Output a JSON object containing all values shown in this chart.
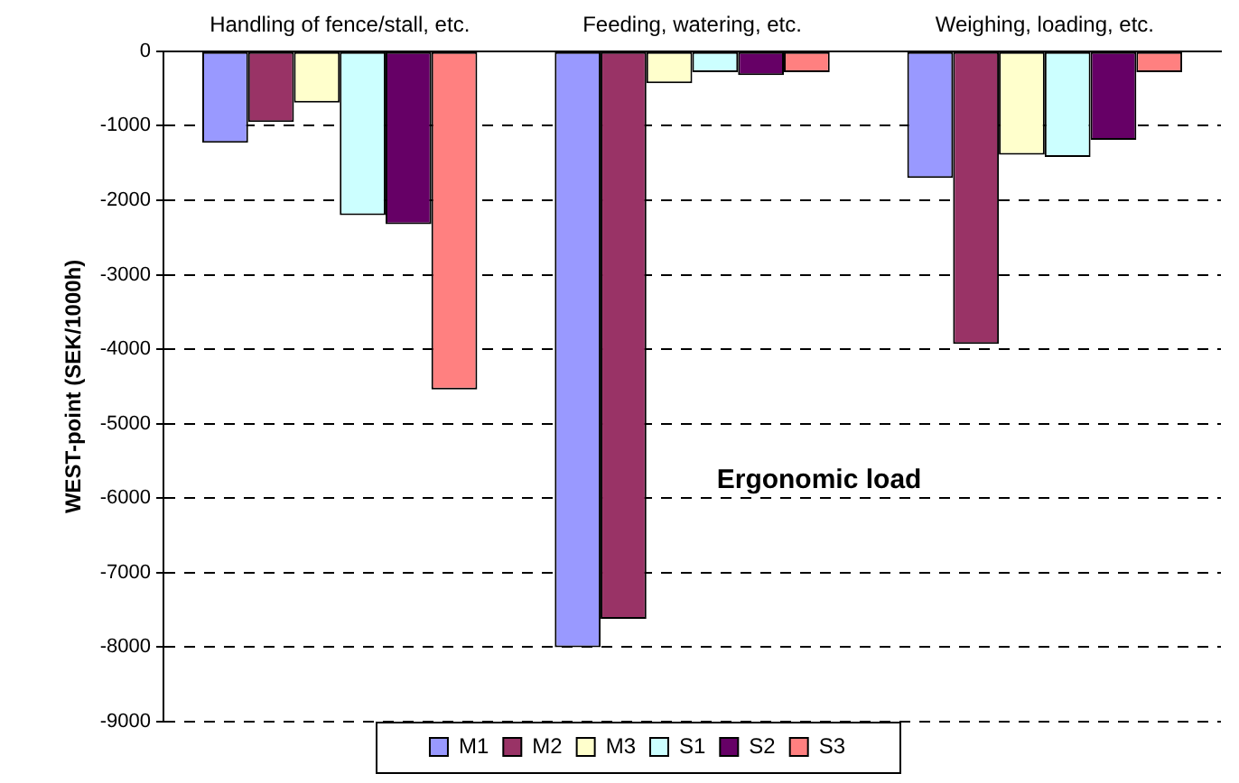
{
  "chart_data": {
    "type": "bar",
    "categories": [
      "Handling of fence/stall, etc.",
      "Feeding, watering, etc.",
      "Weighing, loading, etc."
    ],
    "ylabel": "WEST-point (SEK/1000h)",
    "annotations": [
      "Ergonomic load"
    ],
    "series": [
      {
        "name": "M1",
        "color": "#9999ff",
        "values": [
          -1230,
          -8000,
          -1700
        ]
      },
      {
        "name": "M2",
        "color": "#993366",
        "values": [
          -950,
          -7620,
          -3930
        ]
      },
      {
        "name": "M3",
        "color": "#ffffcc",
        "values": [
          -690,
          -430,
          -1390
        ]
      },
      {
        "name": "S1",
        "color": "#ccffff",
        "values": [
          -2200,
          -280,
          -1420
        ]
      },
      {
        "name": "S2",
        "color": "#660066",
        "values": [
          -2320,
          -320,
          -1190
        ]
      },
      {
        "name": "S3",
        "color": "#ff8080",
        "values": [
          -4540,
          -280,
          -280
        ]
      }
    ],
    "ylim": [
      -9000,
      0
    ],
    "yticks": [
      -9000,
      -8000,
      -7000,
      -6000,
      -5000,
      -4000,
      -3000,
      -2000,
      -1000,
      0
    ],
    "grid": "y",
    "legend": "bottom"
  }
}
